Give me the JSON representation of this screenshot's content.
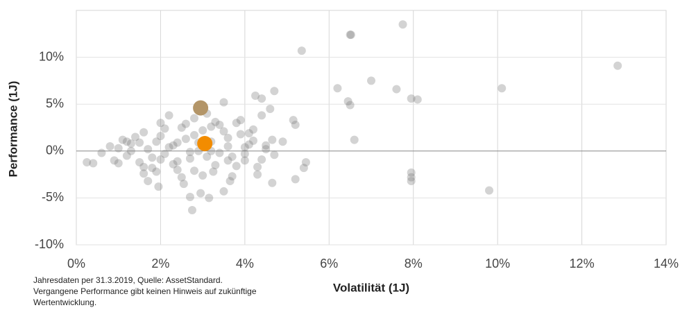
{
  "chart_data": {
    "type": "scatter",
    "xlabel": "Volatilität (1J)",
    "ylabel": "Performance (1J)",
    "footnote": [
      "Jahresdaten per 31.3.2019, Quelle: AssetStandard.",
      "Vergangene Performance gibt keinen Hinweis auf zukünftige",
      "Wertentwicklung."
    ],
    "xlim": [
      0,
      14
    ],
    "ylim": [
      -10,
      15
    ],
    "xticks": [
      {
        "value": 0,
        "label": "0%"
      },
      {
        "value": 2,
        "label": "2%"
      },
      {
        "value": 4,
        "label": "4%"
      },
      {
        "value": 6,
        "label": "6%"
      },
      {
        "value": 8,
        "label": "8%"
      },
      {
        "value": 10,
        "label": "10%"
      },
      {
        "value": 12,
        "label": "12%"
      },
      {
        "value": 14,
        "label": "14%"
      }
    ],
    "yticks": [
      {
        "value": -10,
        "label": "-10%"
      },
      {
        "value": -5,
        "label": "-5%"
      },
      {
        "value": 0,
        "label": "0%"
      },
      {
        "value": 5,
        "label": "5%"
      },
      {
        "value": 10,
        "label": "10%"
      }
    ],
    "grid": true,
    "series": [
      {
        "color": "#7a7a7a",
        "x": [
          5.35,
          6.5,
          6.52,
          7.75,
          12.85,
          10.1,
          6.2,
          7.0,
          7.6,
          7.95,
          8.1,
          6.45,
          6.5,
          6.6,
          7.95,
          7.95,
          7.95,
          9.8,
          5.45,
          5.4,
          5.2,
          4.65,
          4.7,
          4.25,
          4.4,
          5.15,
          5.2,
          4.9,
          4.65,
          0.25,
          0.4,
          2.75,
          2.95,
          3.15,
          2.7,
          3.5,
          1.7,
          1.6,
          1.95,
          2.55,
          3.25,
          3.65,
          0.6,
          0.8,
          0.9,
          1.0,
          1.1,
          1.2,
          1.3,
          1.4,
          1.5,
          1.6,
          1.7,
          1.8,
          1.9,
          2.0,
          2.1,
          2.2,
          2.3,
          2.4,
          2.5,
          2.6,
          2.7,
          2.8,
          2.9,
          3.0,
          3.1,
          3.2,
          3.3,
          3.4,
          3.5,
          3.6,
          3.7,
          3.8,
          3.9,
          4.0,
          4.1,
          4.2,
          4.3,
          4.4,
          4.5,
          4.6,
          4.7,
          1.0,
          1.3,
          1.5,
          1.8,
          2.0,
          2.2,
          2.4,
          2.6,
          2.8,
          3.0,
          3.2,
          3.4,
          3.6,
          3.8,
          4.0,
          4.2,
          4.4,
          1.9,
          2.3,
          2.7,
          3.1,
          3.5,
          3.9,
          4.3,
          2.1,
          2.5,
          2.9,
          3.3,
          3.7,
          4.1,
          1.2,
          1.6,
          2.0,
          2.4,
          2.8,
          3.2,
          3.6,
          4.0,
          4.5
        ],
        "values": [
          10.7,
          12.4,
          12.4,
          13.5,
          9.1,
          6.7,
          6.7,
          7.5,
          6.6,
          5.6,
          5.5,
          5.3,
          4.9,
          1.2,
          -2.3,
          -2.8,
          -3.2,
          -4.2,
          -1.2,
          -1.8,
          -3.0,
          -3.4,
          6.4,
          5.9,
          5.6,
          3.3,
          2.8,
          1.0,
          1.2,
          -1.2,
          -1.3,
          -6.3,
          -4.5,
          -5.0,
          -4.9,
          -4.3,
          -3.2,
          -2.4,
          -3.8,
          -3.5,
          -2.2,
          -3.2,
          -0.2,
          0.5,
          -1.0,
          0.3,
          1.2,
          -0.5,
          0.8,
          1.5,
          -1.2,
          2.0,
          0.2,
          -1.8,
          1.0,
          3.0,
          -0.3,
          3.8,
          0.6,
          -2.0,
          2.5,
          1.3,
          -0.8,
          3.5,
          0.0,
          2.2,
          4.0,
          1.0,
          -1.5,
          2.8,
          5.2,
          0.5,
          -0.6,
          3.0,
          1.8,
          -1.0,
          0.7,
          2.3,
          -2.5,
          3.8,
          0.2,
          4.5,
          -0.4,
          -1.3,
          0.0,
          0.9,
          -0.7,
          1.6,
          0.4,
          -1.1,
          2.9,
          1.7,
          -2.6,
          0.0,
          -0.2,
          1.4,
          -1.6,
          -0.3,
          1.1,
          -0.9,
          -2.2,
          -1.4,
          -0.1,
          -0.6,
          2.1,
          3.3,
          -1.7,
          2.4,
          -2.8,
          0.9,
          3.1,
          -2.7,
          1.9,
          1.0,
          -1.7,
          -0.9,
          0.9,
          -2.1,
          2.6,
          -1.0,
          0.4,
          0.6
        ],
        "opacity": 0.33,
        "size": 6
      },
      {
        "color": "#b39568",
        "x": [
          2.95
        ],
        "values": [
          4.6
        ],
        "opacity": 1,
        "size": 11
      },
      {
        "color": "#f28c00",
        "x": [
          3.05
        ],
        "values": [
          0.8
        ],
        "opacity": 1,
        "size": 11
      }
    ]
  }
}
